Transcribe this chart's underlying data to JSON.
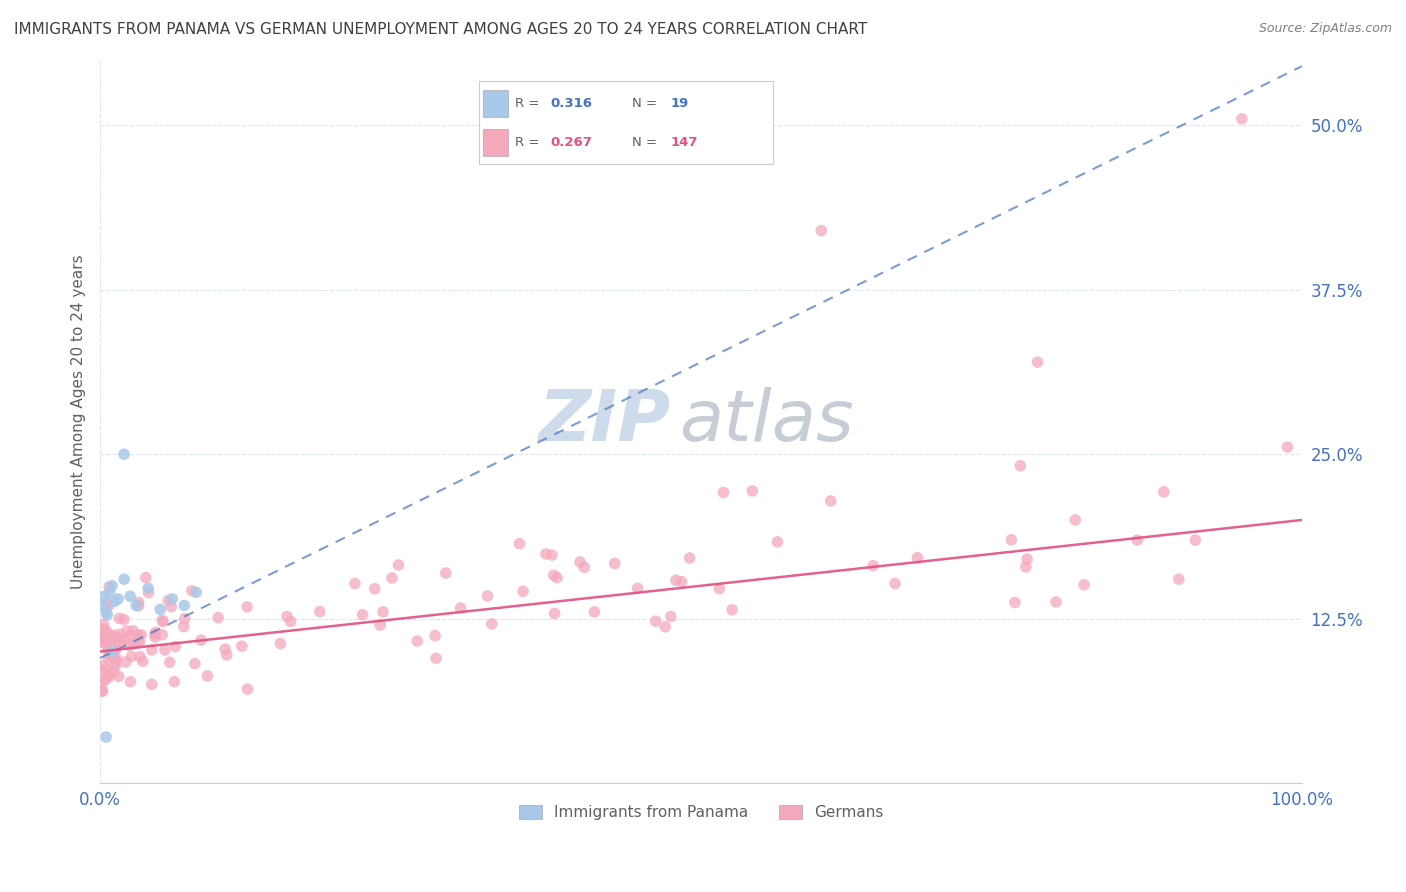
{
  "title": "IMMIGRANTS FROM PANAMA VS GERMAN UNEMPLOYMENT AMONG AGES 20 TO 24 YEARS CORRELATION CHART",
  "source": "Source: ZipAtlas.com",
  "ylabel": "Unemployment Among Ages 20 to 24 years",
  "r_blue": "0.316",
  "n_blue": "19",
  "r_pink": "0.267",
  "n_pink": "147",
  "legend_labels": [
    "Immigrants from Panama",
    "Germans"
  ],
  "blue_color": "#a8c8e8",
  "pink_color": "#f4a8bc",
  "blue_line_color": "#4472c4",
  "pink_line_color": "#e05080",
  "background_color": "#ffffff",
  "grid_color": "#d8e4f0",
  "watermark_zip_color": "#c8d8e8",
  "watermark_atlas_color": "#c0c8d0",
  "title_color": "#404040",
  "source_color": "#808080",
  "tick_label_color": "#4472c4",
  "ylabel_color": "#606060",
  "legend_text_color": "#606060",
  "xlim": [
    0.0,
    100.0
  ],
  "ylim": [
    0.0,
    55.0
  ],
  "ytick_positions": [
    12.5,
    25.0,
    37.5,
    50.0
  ],
  "ytick_labels": [
    "12.5%",
    "25.0%",
    "37.5%",
    "50.0%"
  ],
  "xtick_positions": [
    0.0,
    100.0
  ],
  "xtick_labels": [
    "0.0%",
    "100.0%"
  ],
  "blue_trend_x": [
    0.0,
    100.0
  ],
  "blue_trend_y_start": 9.5,
  "blue_trend_slope": 0.45,
  "pink_trend_y_start": 10.0,
  "pink_trend_slope": 0.1
}
